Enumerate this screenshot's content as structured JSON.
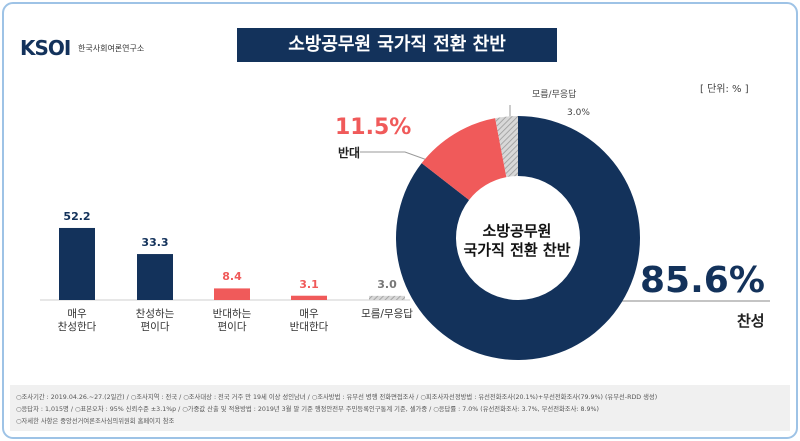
{
  "logo": {
    "mark": "KSOI",
    "name": "한국사회여론연구소"
  },
  "unit": "[ 단위: % ]",
  "chart_data": [
    {
      "type": "bar",
      "title": "소방공무원 국가직 전환 찬반",
      "categories": [
        "매우\n찬성한다",
        "찬성하는\n편이다",
        "반대하는\n편이다",
        "매우\n반대한다",
        "모름/무응답"
      ],
      "values": [
        52.2,
        33.3,
        8.4,
        3.1,
        3.0
      ],
      "value_labels": [
        "52.2",
        "33.3",
        "8.4",
        "3.1",
        "3.0"
      ],
      "colors": [
        "#13325b",
        "#13325b",
        "#f05a5a",
        "#f05a5a",
        "#bdbdbd"
      ]
    },
    {
      "type": "donut",
      "center_label": "소방공무원\n국가직 전환 찬반",
      "categories": [
        "찬성",
        "반대",
        "모름/무응답"
      ],
      "values": [
        85.6,
        11.5,
        3.0
      ],
      "value_labels": [
        "85.6%",
        "11.5%",
        "3.0%"
      ],
      "colors": [
        "#13325b",
        "#f05a5a",
        "#c4c4c4"
      ]
    }
  ],
  "footer": [
    "○조사기간 : 2019.04.26.~27.(2일간) / ○조사지역 : 전국 / ○조사대상 : 전국 거주 만 19세 이상 성인남녀 / ○조사방법 : 유무선 병행 전화면접조사 / ○피조사자선정방법 : 유선전화조사(20.1%)+무선전화조사(79.9%) (유무선-RDD 생성)",
    "○응답자 : 1,015명 / ○표본오차 : 95% 신뢰수준 ±3.1%p / ○가중값 산출 및 적용방법 : 2019년 3월 말 기준 행정안전부 주민등록인구통계 기준, 셀가중 / ○응답률 : 7.0% (유선전화조사: 3.7%, 무선전화조사: 8.9%)",
    "○자세한 사항은 중앙선거여론조사심의위원회 홈페이지 참조"
  ]
}
